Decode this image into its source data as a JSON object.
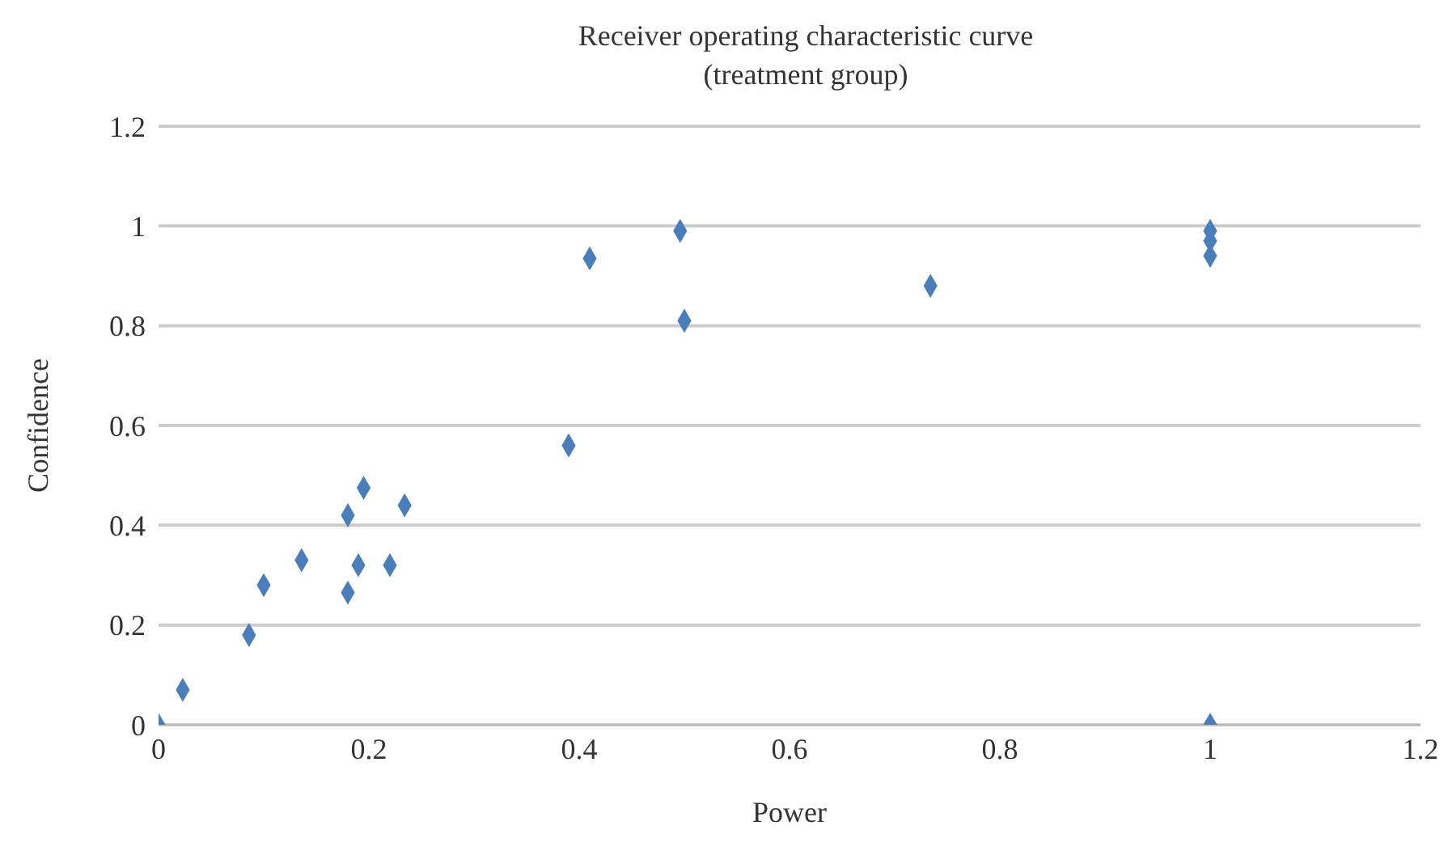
{
  "chart_data": {
    "type": "scatter",
    "title": "Receiver operating characteristic curve (treatment group)",
    "xlabel": "Power",
    "ylabel": "Confidence",
    "x": [
      0,
      0.023,
      0.086,
      0.1,
      0.136,
      0.18,
      0.18,
      0.19,
      0.195,
      0.22,
      0.234,
      0.39,
      0.41,
      0.496,
      0.5,
      0.734,
      1,
      1,
      1,
      1
    ],
    "series": [
      {
        "color": "#4a7ebb",
        "values": [
          0,
          0.07,
          0.18,
          0.28,
          0.33,
          0.265,
          0.42,
          0.32,
          0.475,
          0.32,
          0.44,
          0.56,
          0.935,
          0.99,
          0.81,
          0.88,
          0.99,
          0.97,
          0.94,
          0
        ]
      }
    ],
    "xlim": [
      0,
      1.2
    ],
    "xticks": [
      0,
      0.2,
      0.4,
      0.6,
      0.8,
      1,
      1.2
    ],
    "ylim": [
      0,
      1.2
    ],
    "yticks": [
      0,
      0.2,
      0.4,
      0.6,
      0.8,
      1,
      1.2
    ],
    "grid": "y",
    "marker": "diamond"
  }
}
